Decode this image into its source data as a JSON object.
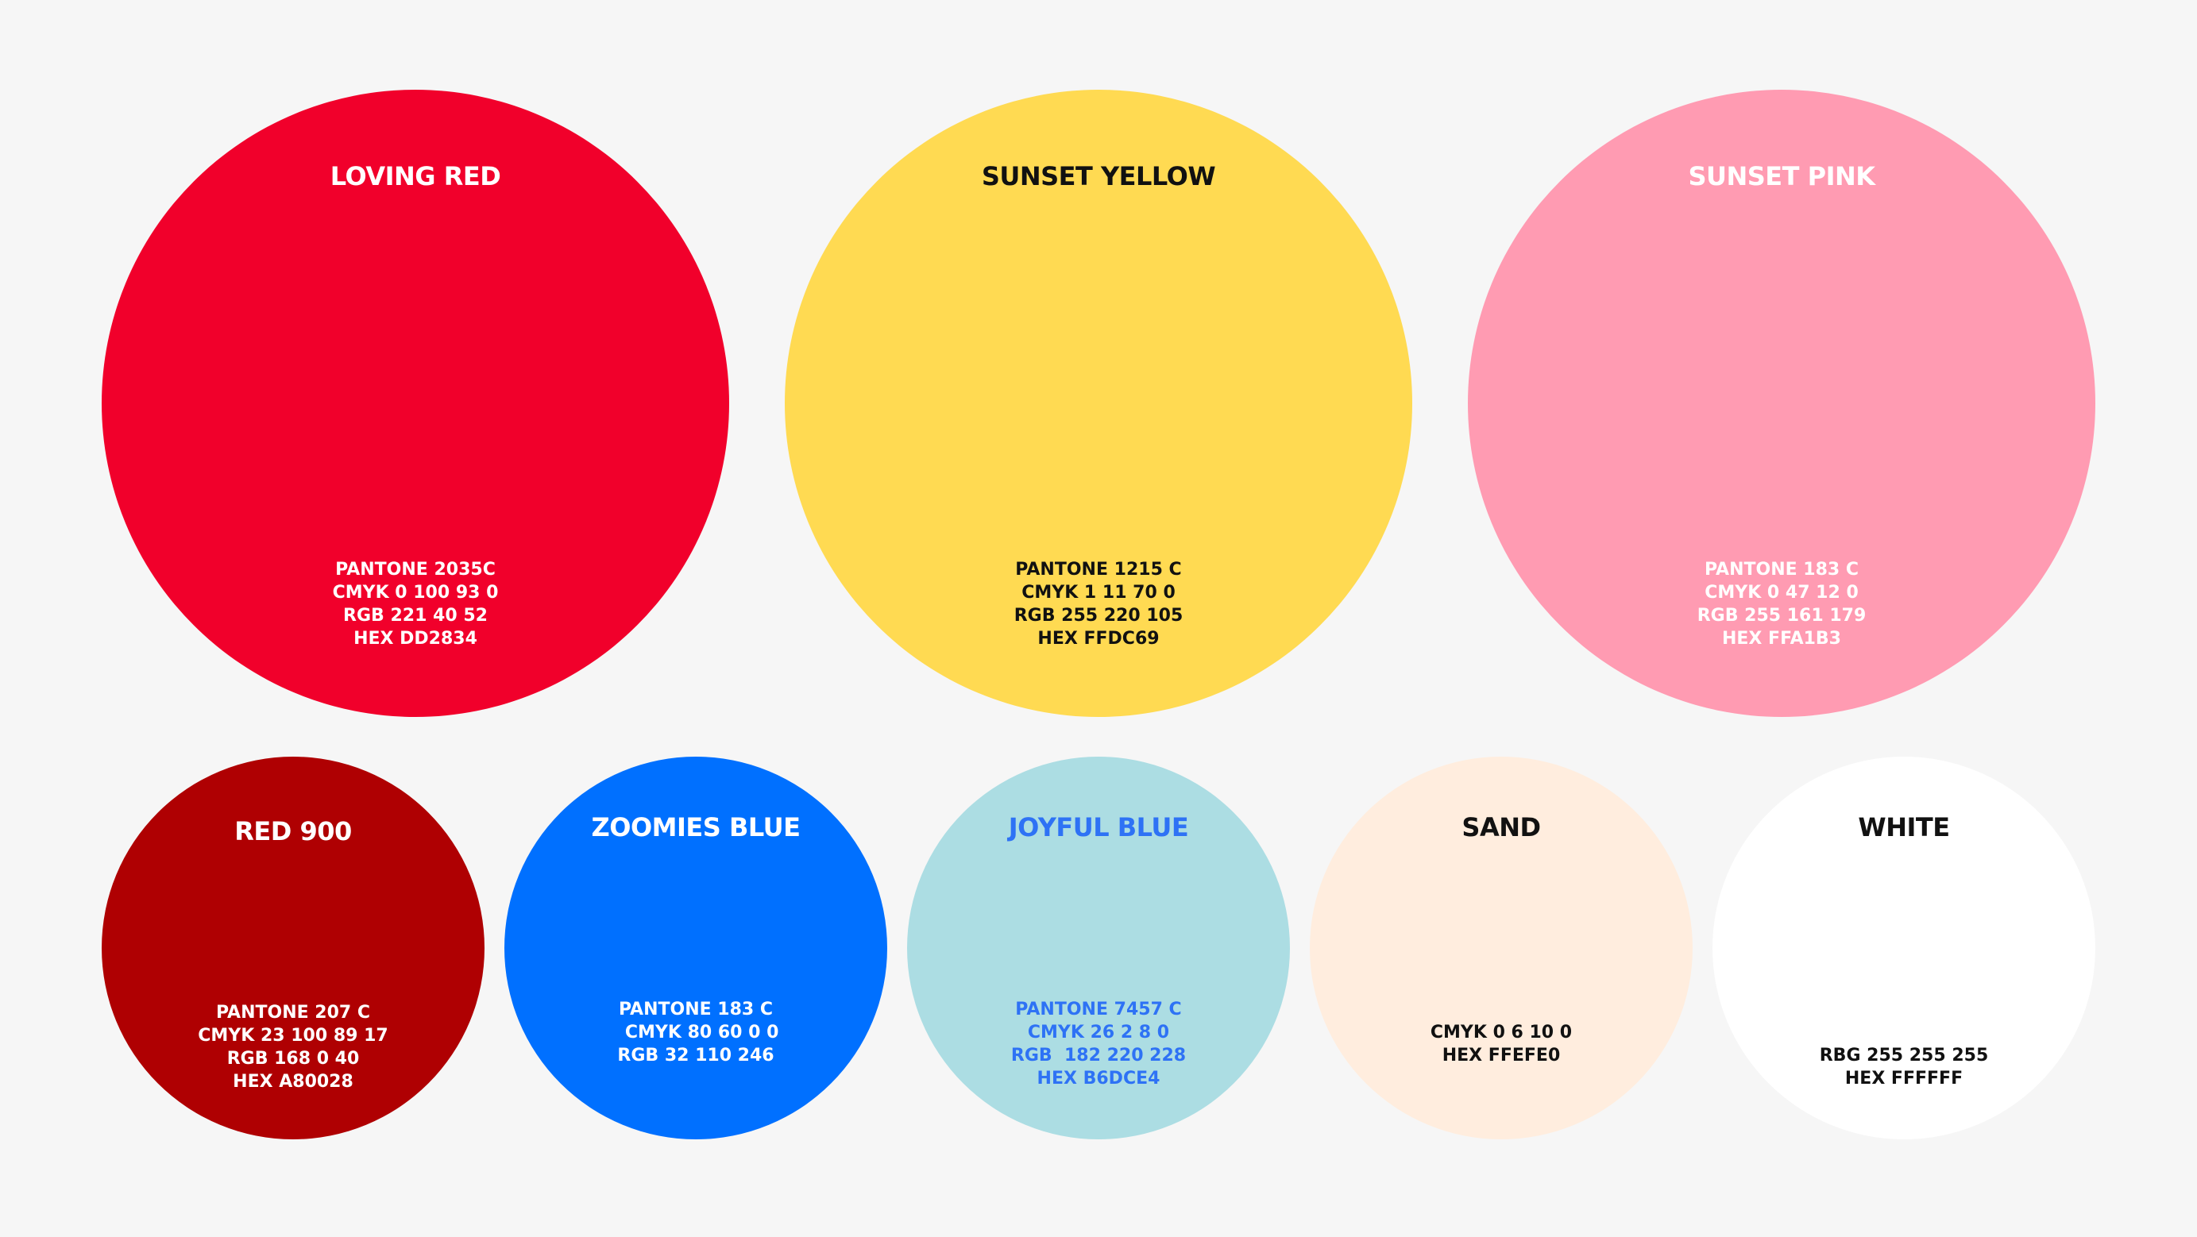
{
  "palette": {
    "loving_red": {
      "name": "LOVING RED",
      "specs": "PANTONE 2035C\nCMYK 0 100 93 0\nRGB 221 40 52\nHEX DD2834",
      "fill": "#F1002B",
      "text_color": "#FFFFFF"
    },
    "sunset_yellow": {
      "name": "SUNSET YELLOW",
      "specs": "PANTONE 1215 C\nCMYK 1 11 70 0\nRGB 255 220 105\nHEX FFDC69",
      "fill": "#FFDA52",
      "text_color": "#111111"
    },
    "sunset_pink": {
      "name": "SUNSET PINK",
      "specs": "PANTONE 183 C\nCMYK 0 47 12 0\nRGB 255 161 179\nHEX FFA1B3",
      "fill": "#FF9BB2",
      "text_color": "#FFFFFF"
    },
    "red_900": {
      "name": "RED 900",
      "specs": "PANTONE 207 C\nCMYK 23 100 89 17\nRGB 168 0 40\nHEX A80028",
      "fill": "#AF0002",
      "text_color": "#FFFFFF"
    },
    "zoomies_blue": {
      "name": "ZOOMIES BLUE",
      "specs": "PANTONE 183 C\n  CMYK 80 60 0 0\nRGB 32 110 246",
      "fill": "#0070FF",
      "text_color": "#FFFFFF"
    },
    "joyful_blue": {
      "name": "JOYFUL BLUE",
      "specs": "PANTONE 7457 C\nCMYK 26 2 8 0\nRGB  182 220 228\nHEX B6DCE4",
      "fill": "#ACDDE3",
      "text_color": "#2E72F5"
    },
    "sand": {
      "name": "SAND",
      "specs": "CMYK 0 6 10 0\nHEX FFEFE0",
      "fill": "#FFEDDE",
      "text_color": "#111111"
    },
    "white": {
      "name": "WHITE",
      "specs": "RBG 255 255 255\nHEX FFFFFF",
      "fill": "#FFFFFF",
      "text_color": "#111111"
    }
  }
}
